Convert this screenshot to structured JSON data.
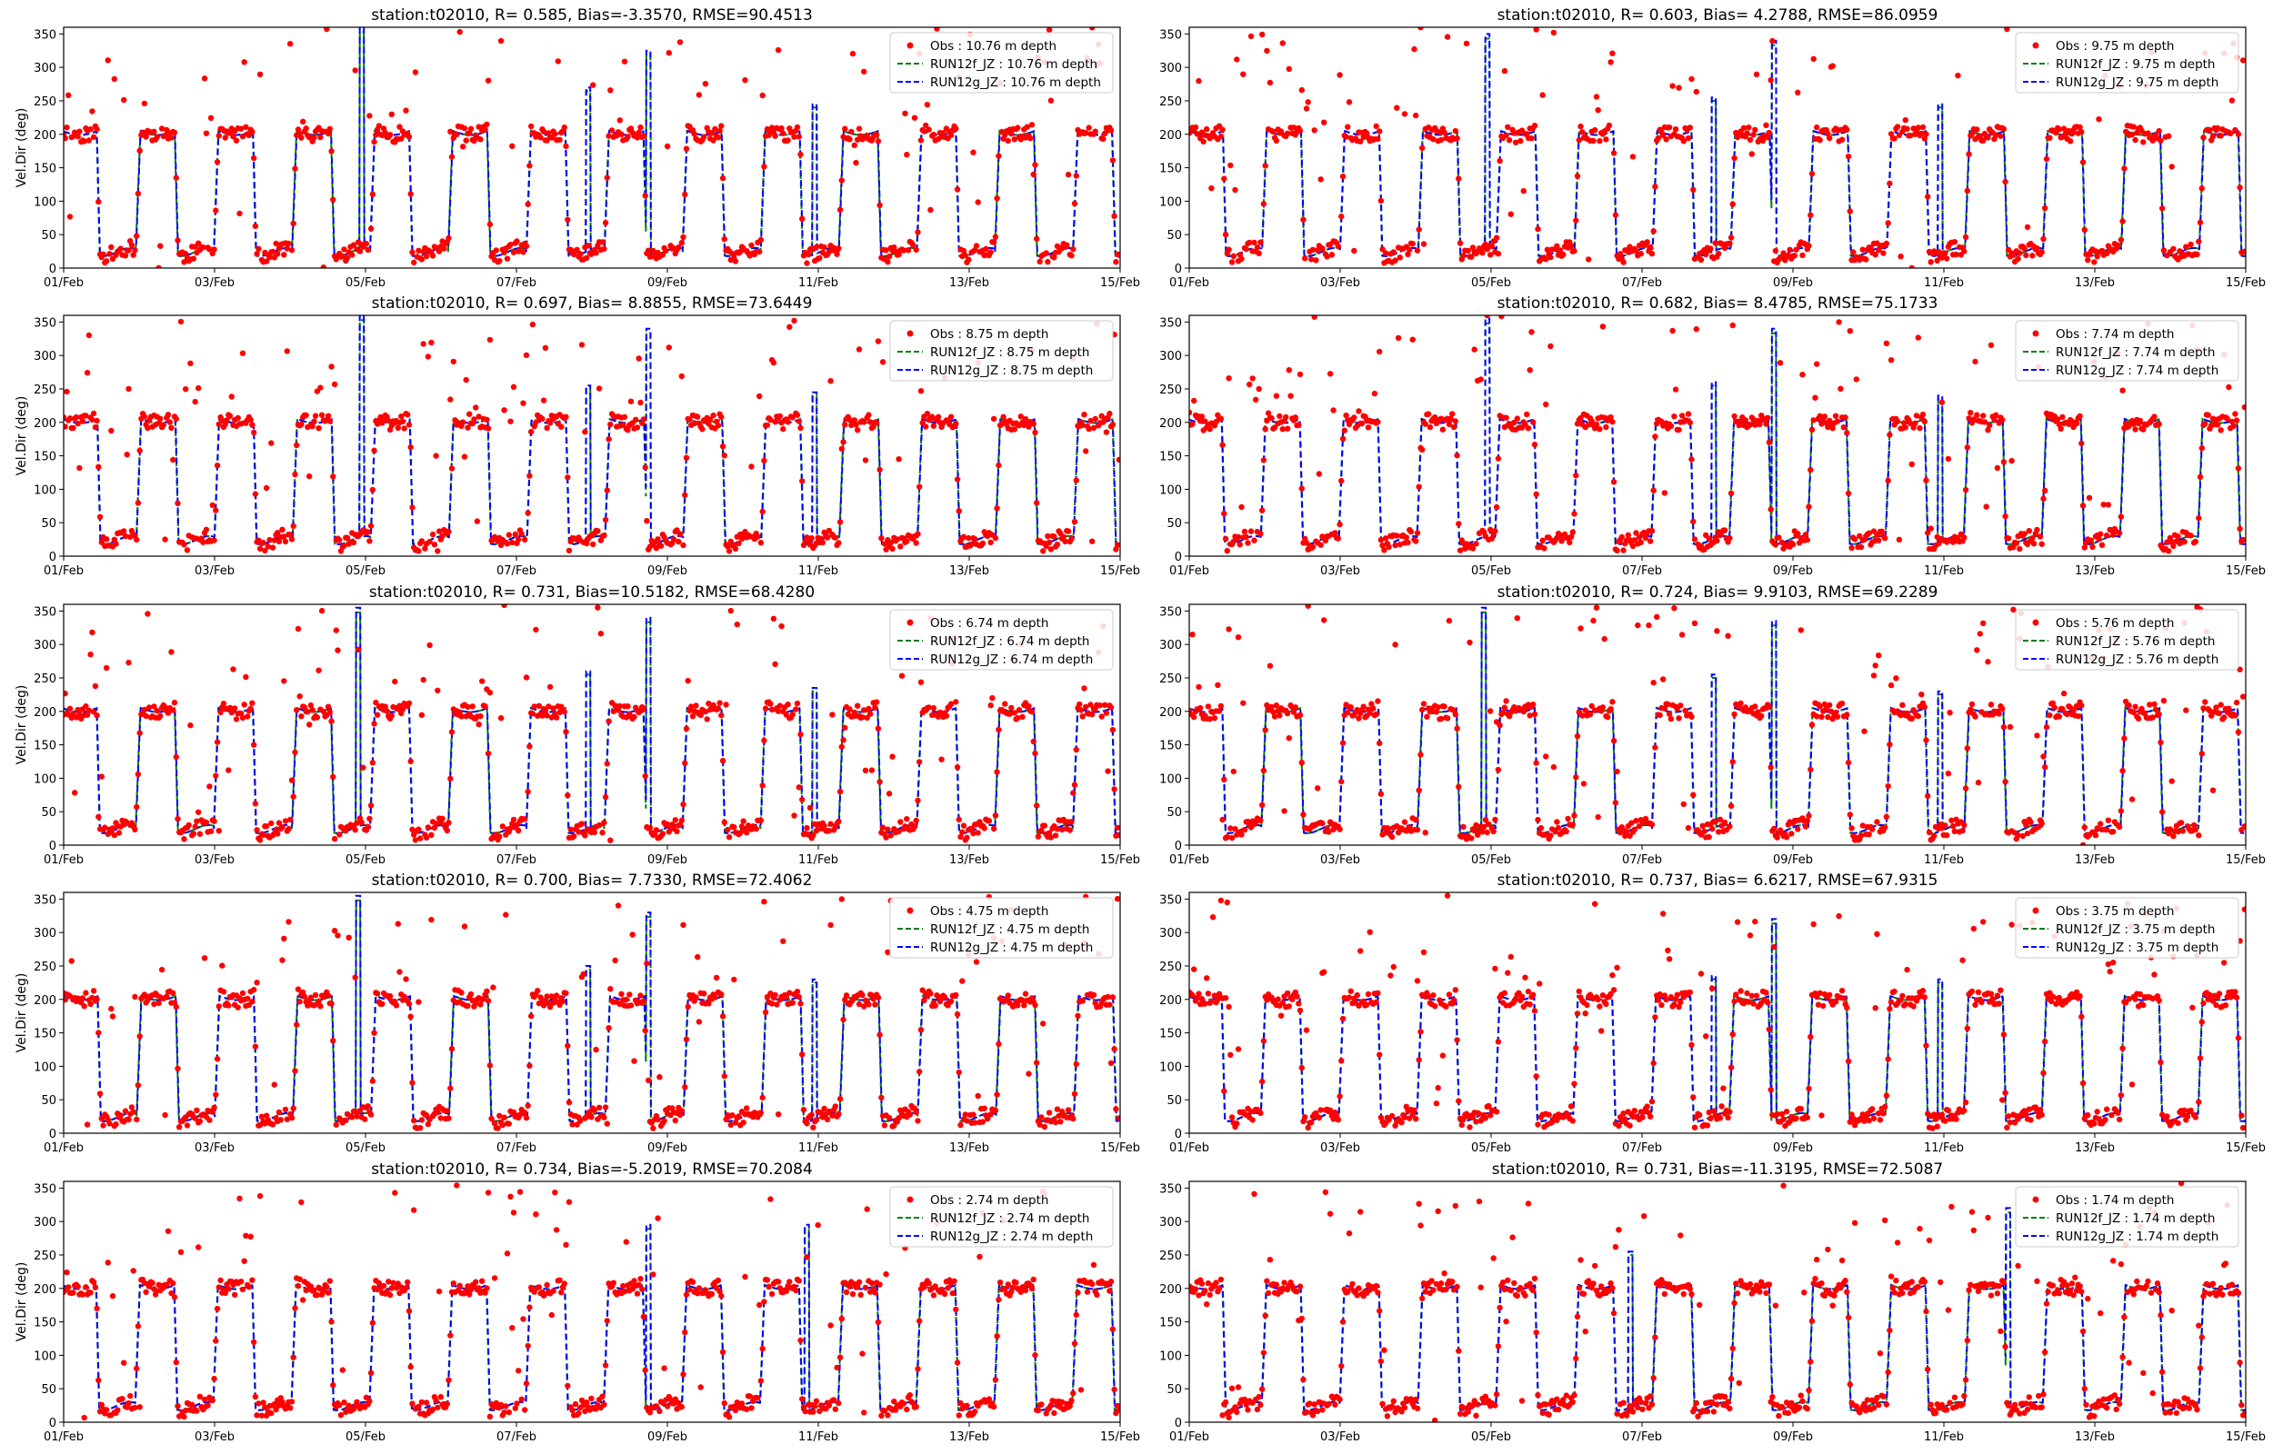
{
  "colors": {
    "obs": "#ff0000",
    "run12f": "#008000",
    "run12g": "#0000ff",
    "axis": "#000000"
  },
  "shared": {
    "ylabel": "Vel.Dir (deg)",
    "ylim": [
      0,
      360
    ],
    "yticks": [
      0,
      50,
      100,
      150,
      200,
      250,
      300,
      350
    ],
    "xlim_days": [
      1,
      15
    ],
    "xticks": [
      "01/Feb",
      "03/Feb",
      "05/Feb",
      "07/Feb",
      "09/Feb",
      "11/Feb",
      "13/Feb",
      "15/Feb"
    ],
    "legend_position": "top-right"
  },
  "chart_data": [
    {
      "type": "line",
      "title": "station:t02010, R= 0.585, Bias=-3.3570, RMSE=90.4513",
      "legend": [
        "Obs : 10.76 m depth",
        "RUN12f_JZ : 10.76 m depth",
        "RUN12g_JZ : 10.76 m depth"
      ],
      "ylabel": "Vel.Dir (deg)",
      "seed": 11,
      "spikes": [
        {
          "x": 4.95,
          "y": 360
        },
        {
          "x": 7.95,
          "y": 270
        },
        {
          "x": 8.75,
          "y": 325
        },
        {
          "x": 10.95,
          "y": 245
        }
      ]
    },
    {
      "type": "line",
      "title": "station:t02010, R= 0.603, Bias= 4.2788, RMSE=86.0959",
      "legend": [
        "Obs : 9.75 m depth",
        "RUN12f_JZ : 9.75 m depth",
        "RUN12g_JZ : 9.75 m depth"
      ],
      "ylabel": "",
      "seed": 23,
      "spikes": [
        {
          "x": 4.95,
          "y": 350
        },
        {
          "x": 7.95,
          "y": 255
        },
        {
          "x": 8.75,
          "y": 340
        },
        {
          "x": 10.95,
          "y": 245
        }
      ]
    },
    {
      "type": "line",
      "title": "station:t02010, R= 0.697, Bias= 8.8855, RMSE=73.6449",
      "legend": [
        "Obs : 8.75 m depth",
        "RUN12f_JZ : 8.75 m depth",
        "RUN12g_JZ : 8.75 m depth"
      ],
      "ylabel": "Vel.Dir (deg)",
      "seed": 37,
      "spikes": [
        {
          "x": 4.95,
          "y": 360
        },
        {
          "x": 7.95,
          "y": 255
        },
        {
          "x": 8.75,
          "y": 340
        },
        {
          "x": 10.95,
          "y": 245
        }
      ]
    },
    {
      "type": "line",
      "title": "station:t02010, R= 0.682, Bias= 8.4785, RMSE=75.1733",
      "legend": [
        "Obs : 7.74 m depth",
        "RUN12f_JZ : 7.74 m depth",
        "RUN12g_JZ : 7.74 m depth"
      ],
      "ylabel": "",
      "seed": 41,
      "spikes": [
        {
          "x": 4.95,
          "y": 355
        },
        {
          "x": 7.95,
          "y": 260
        },
        {
          "x": 8.75,
          "y": 340
        },
        {
          "x": 10.95,
          "y": 240
        }
      ]
    },
    {
      "type": "line",
      "title": "station:t02010, R= 0.731, Bias=10.5182, RMSE=68.4280",
      "legend": [
        "Obs : 6.74 m depth",
        "RUN12f_JZ : 6.74 m depth",
        "RUN12g_JZ : 6.74 m depth"
      ],
      "ylabel": "Vel.Dir (deg)",
      "seed": 53,
      "spikes": [
        {
          "x": 4.9,
          "y": 355
        },
        {
          "x": 7.95,
          "y": 260
        },
        {
          "x": 8.75,
          "y": 340
        },
        {
          "x": 10.95,
          "y": 235
        }
      ]
    },
    {
      "type": "line",
      "title": "station:t02010, R= 0.724, Bias= 9.9103, RMSE=69.2289",
      "legend": [
        "Obs : 5.76 m depth",
        "RUN12f_JZ : 5.76 m depth",
        "RUN12g_JZ : 5.76 m depth"
      ],
      "ylabel": "",
      "seed": 67,
      "spikes": [
        {
          "x": 4.9,
          "y": 355
        },
        {
          "x": 7.95,
          "y": 255
        },
        {
          "x": 8.75,
          "y": 335
        },
        {
          "x": 10.95,
          "y": 230
        }
      ]
    },
    {
      "type": "line",
      "title": "station:t02010, R= 0.700, Bias= 7.7330, RMSE=72.4062",
      "legend": [
        "Obs : 4.75 m depth",
        "RUN12f_JZ : 4.75 m depth",
        "RUN12g_JZ : 4.75 m depth"
      ],
      "ylabel": "Vel.Dir (deg)",
      "seed": 71,
      "spikes": [
        {
          "x": 4.9,
          "y": 355
        },
        {
          "x": 7.95,
          "y": 250
        },
        {
          "x": 8.75,
          "y": 330
        },
        {
          "x": 10.95,
          "y": 230
        }
      ]
    },
    {
      "type": "line",
      "title": "station:t02010, R= 0.737, Bias= 6.6217, RMSE=67.9315",
      "legend": [
        "Obs : 3.75 m depth",
        "RUN12f_JZ : 3.75 m depth",
        "RUN12g_JZ : 3.75 m depth"
      ],
      "ylabel": "",
      "seed": 83,
      "spikes": [
        {
          "x": 7.95,
          "y": 235
        },
        {
          "x": 8.75,
          "y": 320
        },
        {
          "x": 10.95,
          "y": 230
        }
      ]
    },
    {
      "type": "line",
      "title": "station:t02010, R= 0.734, Bias=-5.2019, RMSE=70.2084",
      "legend": [
        "Obs : 2.74 m depth",
        "RUN12f_JZ : 2.74 m depth",
        "RUN12g_JZ : 2.74 m depth"
      ],
      "ylabel": "Vel.Dir (deg)",
      "seed": 97,
      "spikes": [
        {
          "x": 8.75,
          "y": 295
        },
        {
          "x": 10.85,
          "y": 295
        }
      ]
    },
    {
      "type": "line",
      "title": "station:t02010, R= 0.731, Bias=-11.3195, RMSE=72.5087",
      "legend": [
        "Obs : 1.74 m depth",
        "RUN12f_JZ : 1.74 m depth",
        "RUN12g_JZ : 1.74 m depth"
      ],
      "ylabel": "",
      "seed": 101,
      "spikes": [
        {
          "x": 6.85,
          "y": 255
        },
        {
          "x": 11.85,
          "y": 320
        }
      ]
    }
  ]
}
